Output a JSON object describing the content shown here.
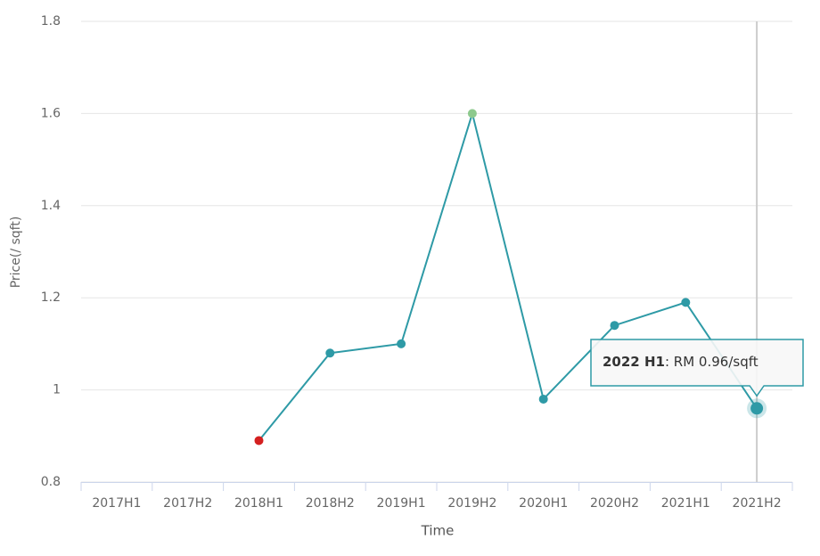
{
  "chart_data": {
    "type": "line",
    "y_label": "Price(/ sqft)",
    "x_label": "Time",
    "categories": [
      "2017H1",
      "2017H2",
      "2018H1",
      "2018H2",
      "2019H1",
      "2019H2",
      "2020H1",
      "2020H2",
      "2021H1",
      "2021H2"
    ],
    "values": [
      null,
      null,
      0.89,
      1.08,
      1.1,
      1.6,
      0.98,
      1.14,
      1.19,
      0.96
    ],
    "color": "#2e9aa6",
    "min_color": "#d42020",
    "max_color": "#8dc98d",
    "ylim": [
      0.8,
      1.8
    ],
    "yticks": [
      0.8,
      1,
      1.2,
      1.4,
      1.6,
      1.8
    ],
    "grid": true,
    "tooltip": {
      "title": "2022 H1",
      "text": ": RM 0.96/sqft"
    }
  }
}
